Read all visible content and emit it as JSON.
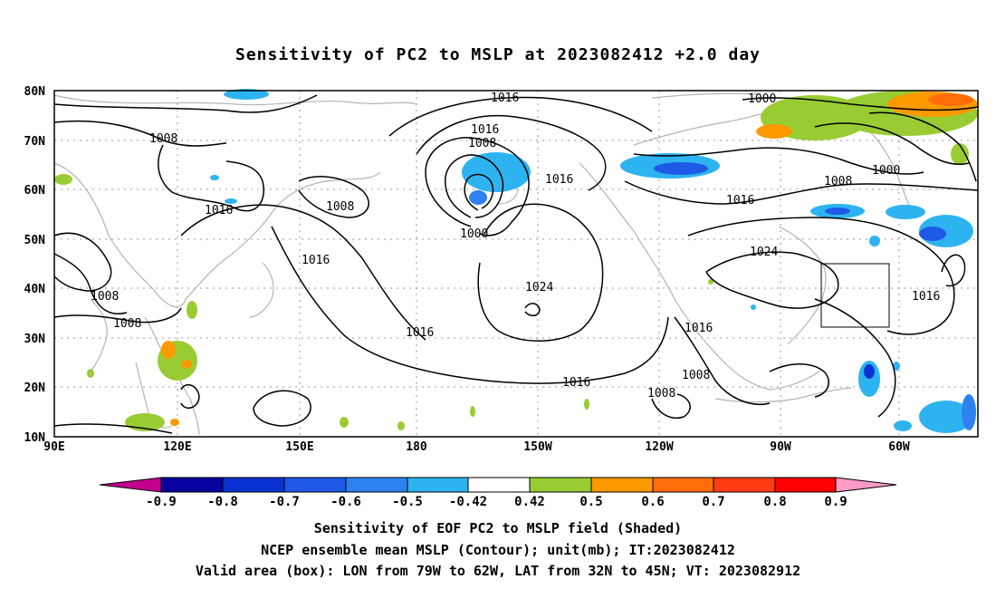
{
  "title": "Sensitivity of PC2 to MSLP at 2023082412 +2.0 day",
  "map": {
    "lat_labels": [
      "80N",
      "70N",
      "60N",
      "50N",
      "40N",
      "30N",
      "20N",
      "10N"
    ],
    "lon_labels": [
      "90E",
      "120E",
      "150E",
      "180",
      "150W",
      "120W",
      "90W",
      "60W"
    ],
    "contour_labels": [
      "1016",
      "1000",
      "1016",
      "1008",
      "1008",
      "1016",
      "1008",
      "1000",
      "1008",
      "1016",
      "1016",
      "1000",
      "1016",
      "1024",
      "1008",
      "1024",
      "1016",
      "1008",
      "1016",
      "1016",
      "1016",
      "1008",
      "1008"
    ],
    "colors": {
      "land_outline": "#b4b4b4",
      "contour": "#000000",
      "grid": "#999999",
      "box": "#000000"
    }
  },
  "colorbar": {
    "labels": [
      "-0.9",
      "-0.8",
      "-0.7",
      "-0.6",
      "-0.5",
      "-0.42",
      "0.42",
      "0.5",
      "0.6",
      "0.7",
      "0.8",
      "0.9"
    ],
    "colors": [
      "#c0008c",
      "#0a00a0",
      "#0a32d2",
      "#1e5ae6",
      "#2d82f0",
      "#2db4f0",
      "#ffffff",
      "#99cc33",
      "#ff9900",
      "#ff6e0a",
      "#ff3c14",
      "#ff0000",
      "#ff9bc8"
    ]
  },
  "captions": {
    "line1": "Sensitivity of EOF PC2 to MSLP field (Shaded)",
    "line2": "NCEP ensemble mean MSLP (Contour); unit(mb); IT:2023082412",
    "line3": "Valid area (box): LON from 79W to 62W, LAT from 32N to 45N; VT: 2023082912"
  }
}
